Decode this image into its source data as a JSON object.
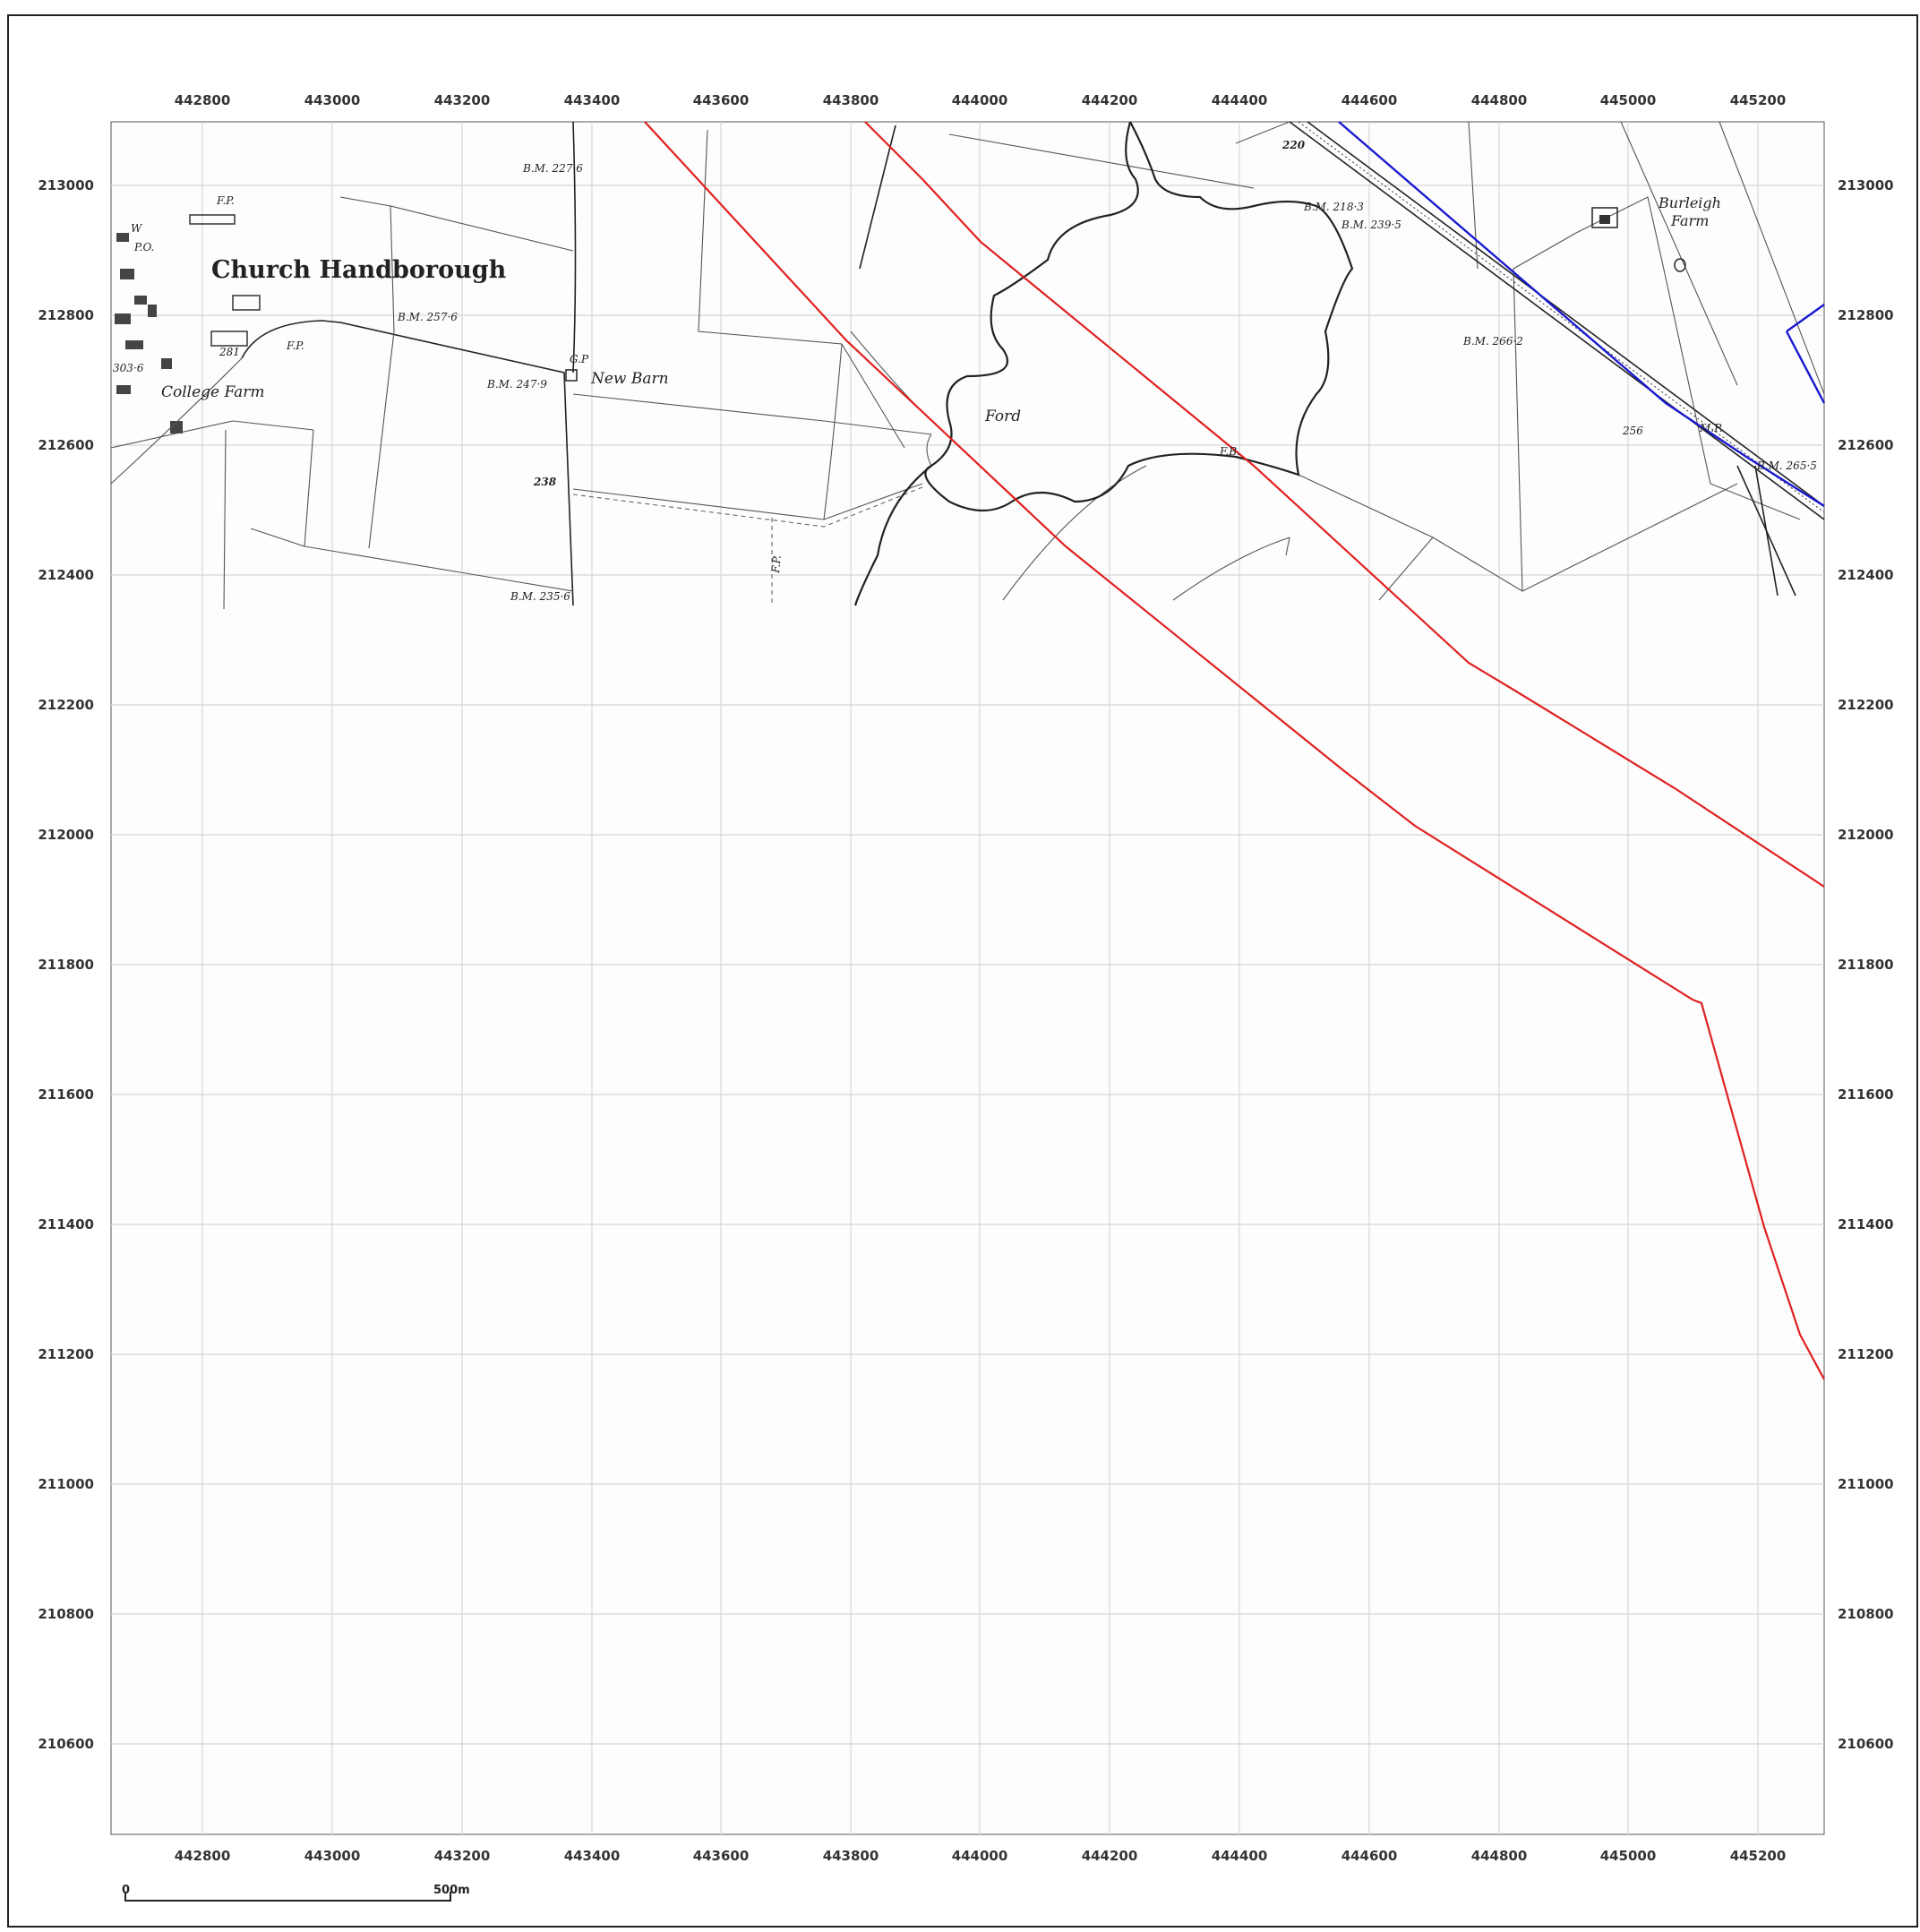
{
  "map": {
    "x_ticks": [
      "442800",
      "443000",
      "443200",
      "443400",
      "443600",
      "443800",
      "444000",
      "444200",
      "444400",
      "444600",
      "444800",
      "445000",
      "445200"
    ],
    "y_ticks": [
      "213000",
      "212800",
      "212600",
      "212400",
      "212200",
      "212000",
      "211800",
      "211600",
      "211400",
      "211200",
      "211000",
      "210800",
      "210600"
    ],
    "place_names": {
      "church_handborough": "Church Handborough",
      "college_farm": "College Farm",
      "new_barn": "New Barn",
      "ford": "Ford",
      "burleigh_farm_1": "Burleigh",
      "burleigh_farm_2": "Farm"
    },
    "annotations": {
      "bm_2276": "B.M. 227·6",
      "bm_2576": "B.M. 257·6",
      "bm_2479": "B.M. 247·9",
      "bm_2356": "B.M. 235·6",
      "bm_2183": "B.M. 218·3",
      "bm_2395": "B.M. 239·5",
      "bm_2662": "B.M. 266·2",
      "bm_2655": "B.M. 265·5",
      "bm_3036": "303·6",
      "gp": "G.P",
      "fp1": "F.P.",
      "fp2": "F.P.",
      "fp3": "F.P.",
      "fb": "F.B.",
      "po": "P.O.",
      "w": "W",
      "mp": "M.P.",
      "n238": "238",
      "n220": "220",
      "n256": "256",
      "n281": "281"
    },
    "scale_bar": {
      "start": "0",
      "end": "500m"
    },
    "colors": {
      "route": "#e02020",
      "boundary": "#1a1ad0",
      "grid": "#d6d6d6"
    }
  }
}
